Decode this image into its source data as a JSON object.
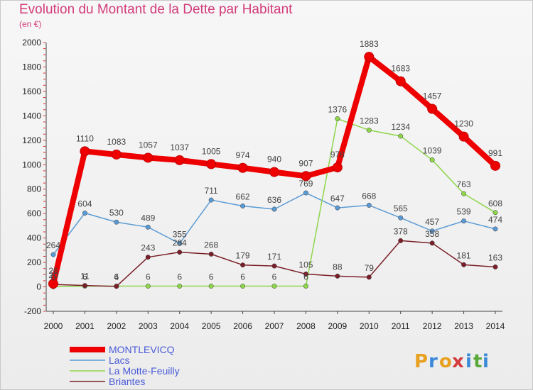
{
  "header": {
    "title": "Evolution du Montant de la Dette par Habitant",
    "unit": "(en €)"
  },
  "logo": {
    "letters": [
      "P",
      "r",
      "o",
      "x",
      "i",
      "t",
      "i"
    ],
    "colors": [
      "#e8a020",
      "#3a8ad8",
      "#e8a020",
      "#d23c3c",
      "#3a8ad8",
      "#5aa83a",
      "#3a8ad8"
    ]
  },
  "chart_data": {
    "type": "line",
    "x": [
      "2000",
      "2001",
      "2002",
      "2003",
      "2004",
      "2005",
      "2006",
      "2007",
      "2008",
      "2009",
      "2010",
      "2011",
      "2012",
      "2013",
      "2014"
    ],
    "ylim": [
      -200,
      2000
    ],
    "yticks": [
      -200,
      0,
      200,
      400,
      600,
      800,
      1000,
      1200,
      1400,
      1600,
      1800,
      2000
    ],
    "grid": false,
    "legend_position": "bottom-left",
    "series": [
      {
        "name": "MONTLEVICQ",
        "color": "#ee0000",
        "width": 8,
        "values": [
          26,
          1110,
          1083,
          1057,
          1037,
          1005,
          974,
          940,
          907,
          978,
          1883,
          1683,
          1457,
          1230,
          991
        ]
      },
      {
        "name": "Lacs",
        "color": "#5b9bd5",
        "width": 1.5,
        "values": [
          264,
          604,
          530,
          489,
          355,
          711,
          662,
          636,
          769,
          647,
          668,
          565,
          457,
          539,
          474
        ]
      },
      {
        "name": "La Motte-Feuilly",
        "color": "#8ed64a",
        "width": 1.5,
        "values": [
          0,
          6,
          6,
          6,
          6,
          6,
          6,
          6,
          6,
          1376,
          1283,
          1234,
          1039,
          763,
          608
        ]
      },
      {
        "name": "Briantes",
        "color": "#7a1f28",
        "width": 1.5,
        "values": [
          20,
          11,
          4,
          243,
          284,
          268,
          179,
          171,
          105,
          88,
          79,
          378,
          358,
          181,
          163
        ]
      }
    ],
    "data_labels": [
      [
        "26",
        "1110",
        "1083",
        "1057",
        "1037",
        "1005",
        "974",
        "940",
        "907",
        "978",
        "1883",
        "1683",
        "1457",
        "1230",
        "991"
      ],
      [
        "264",
        "604",
        "530",
        "489",
        "355",
        "711",
        "662",
        "636",
        "769",
        "647",
        "668",
        "565",
        "457",
        "539",
        "474"
      ],
      [
        "0",
        "6",
        "6",
        "6",
        "6",
        "6",
        "6",
        "6",
        "6",
        "1376",
        "1283",
        "1234",
        "1039",
        "763",
        "608"
      ],
      [
        "20",
        "11",
        "4",
        "243",
        "284",
        "268",
        "179",
        "171",
        "105",
        "88",
        "79",
        "378",
        "358",
        "181",
        "163"
      ]
    ]
  }
}
